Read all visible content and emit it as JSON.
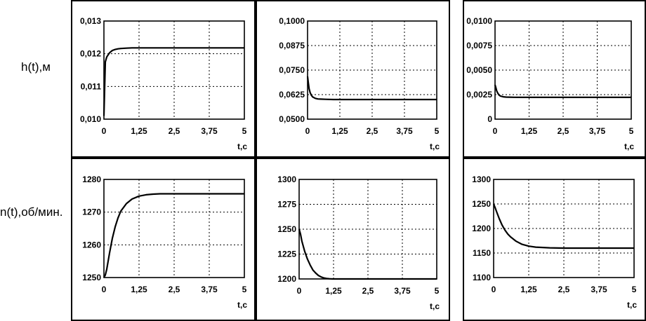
{
  "row_labels": [
    "h(t),м",
    "n(t),об/мин."
  ],
  "chart_data": [
    {
      "type": "line",
      "row": 0,
      "col": 0,
      "x": [
        0,
        0.05,
        0.1,
        0.2,
        0.3,
        0.4,
        0.5,
        0.6,
        0.8,
        1.0,
        1.25,
        1.5,
        2.0,
        2.5,
        3.0,
        3.5,
        4.0,
        4.5,
        5.0
      ],
      "series": [
        {
          "values": [
            0.0101,
            0.01175,
            0.0119,
            0.01203,
            0.0121,
            0.01213,
            0.01215,
            0.01216,
            0.01217,
            0.01218,
            0.01218,
            0.01218,
            0.01218,
            0.01218,
            0.01218,
            0.01218,
            0.01218,
            0.01218,
            0.01218
          ]
        }
      ],
      "xticks": [
        "0",
        "1,25",
        "2,5",
        "3,75",
        "5"
      ],
      "xlabel": "t,c",
      "yticks": [
        "0,010",
        "0,011",
        "0,012",
        "0,013"
      ],
      "xlim": [
        0,
        5
      ],
      "ylim": [
        0.01,
        0.013
      ],
      "grid": true
    },
    {
      "type": "line",
      "row": 0,
      "col": 1,
      "x": [
        0,
        0.03,
        0.06,
        0.1,
        0.15,
        0.2,
        0.3,
        0.4,
        0.5,
        0.7,
        1.0,
        1.25,
        1.5,
        2.0,
        2.5,
        3.0,
        3.5,
        4.0,
        4.5,
        5.0
      ],
      "series": [
        {
          "values": [
            0.0718,
            0.0685,
            0.0655,
            0.0635,
            0.0621,
            0.0613,
            0.0606,
            0.0603,
            0.0602,
            0.0601,
            0.06,
            0.06,
            0.06,
            0.06,
            0.06,
            0.06,
            0.06,
            0.06,
            0.06,
            0.06
          ]
        }
      ],
      "xticks": [
        "0",
        "1,25",
        "2,5",
        "3,75",
        "5"
      ],
      "xlabel": "t,c",
      "yticks": [
        "0,0500",
        "0,0625",
        "0,0750",
        "0,0875",
        "0,1000"
      ],
      "xlim": [
        0,
        5
      ],
      "ylim": [
        0.05,
        0.1
      ],
      "grid": true
    },
    {
      "type": "line",
      "row": 0,
      "col": 2,
      "x": [
        0,
        0.03,
        0.06,
        0.1,
        0.15,
        0.2,
        0.3,
        0.4,
        0.5,
        0.7,
        1.0,
        1.25,
        1.5,
        2.0,
        2.5,
        3.0,
        3.5,
        4.0,
        4.5,
        5.0
      ],
      "series": [
        {
          "values": [
            0.0035,
            0.0032,
            0.0029,
            0.00265,
            0.00245,
            0.00235,
            0.00228,
            0.00225,
            0.00224,
            0.00223,
            0.00222,
            0.00222,
            0.00222,
            0.00222,
            0.00222,
            0.00222,
            0.00222,
            0.00222,
            0.00222,
            0.00222
          ]
        }
      ],
      "xticks": [
        "0",
        "1,25",
        "2,5",
        "3,75",
        "5"
      ],
      "xlabel": "t,c",
      "yticks": [
        "0",
        "0,0025",
        "0,0050",
        "0,0075",
        "0,0100"
      ],
      "xlim": [
        0,
        5
      ],
      "ylim": [
        0,
        0.01
      ],
      "grid": true
    },
    {
      "type": "line",
      "row": 1,
      "col": 0,
      "x": [
        0,
        0.05,
        0.1,
        0.2,
        0.3,
        0.4,
        0.5,
        0.6,
        0.8,
        1.0,
        1.25,
        1.5,
        1.75,
        2.0,
        2.5,
        3.0,
        3.5,
        4.0,
        4.5,
        5.0
      ],
      "series": [
        {
          "values": [
            1250,
            1250.8,
            1252.5,
            1257.5,
            1262,
            1265.5,
            1268.2,
            1270.3,
            1272.6,
            1274.0,
            1274.9,
            1275.3,
            1275.5,
            1275.6,
            1275.6,
            1275.6,
            1275.6,
            1275.6,
            1275.6,
            1275.6
          ]
        }
      ],
      "xticks": [
        "0",
        "1,25",
        "2,5",
        "3,75",
        "5"
      ],
      "xlabel": "t,c",
      "yticks": [
        "1250",
        "1260",
        "1270",
        "1280"
      ],
      "xlim": [
        0,
        5
      ],
      "ylim": [
        1250,
        1280
      ],
      "grid": true
    },
    {
      "type": "line",
      "row": 1,
      "col": 1,
      "x": [
        0,
        0.05,
        0.1,
        0.2,
        0.3,
        0.4,
        0.5,
        0.6,
        0.7,
        0.8,
        0.9,
        1.0,
        1.1,
        1.2,
        1.25,
        1.5,
        2.0,
        2.5,
        3.0,
        3.5,
        4.0,
        4.5,
        5.0
      ],
      "series": [
        {
          "values": [
            1250,
            1245,
            1238,
            1228,
            1220,
            1214,
            1209,
            1206,
            1203.5,
            1202,
            1201,
            1200.5,
            1200.2,
            1200,
            1200,
            1200,
            1200,
            1200,
            1200,
            1200,
            1200,
            1200,
            1200
          ]
        }
      ],
      "xticks": [
        "0",
        "1,25",
        "2,5",
        "3,75",
        "5"
      ],
      "xlabel": "t,c",
      "yticks": [
        "1200",
        "1225",
        "1250",
        "1275",
        "1300"
      ],
      "xlim": [
        0,
        5
      ],
      "ylim": [
        1200,
        1300
      ],
      "grid": true
    },
    {
      "type": "line",
      "row": 1,
      "col": 2,
      "x": [
        0,
        0.05,
        0.1,
        0.2,
        0.3,
        0.4,
        0.5,
        0.6,
        0.8,
        1.0,
        1.25,
        1.5,
        2.0,
        2.5,
        3.0,
        3.5,
        4.0,
        4.5,
        5.0
      ],
      "series": [
        {
          "values": [
            1250,
            1243,
            1235,
            1220,
            1207,
            1197,
            1189,
            1183,
            1174,
            1168,
            1164,
            1162,
            1160.5,
            1160,
            1160,
            1160,
            1160,
            1160,
            1160
          ]
        }
      ],
      "xticks": [
        "0",
        "1,25",
        "2,5",
        "3,75",
        "5"
      ],
      "xlabel": "t,c",
      "yticks": [
        "1100",
        "1150",
        "1200",
        "1250",
        "1300"
      ],
      "xlim": [
        0,
        5
      ],
      "ylim": [
        1100,
        1300
      ],
      "grid": true
    }
  ]
}
